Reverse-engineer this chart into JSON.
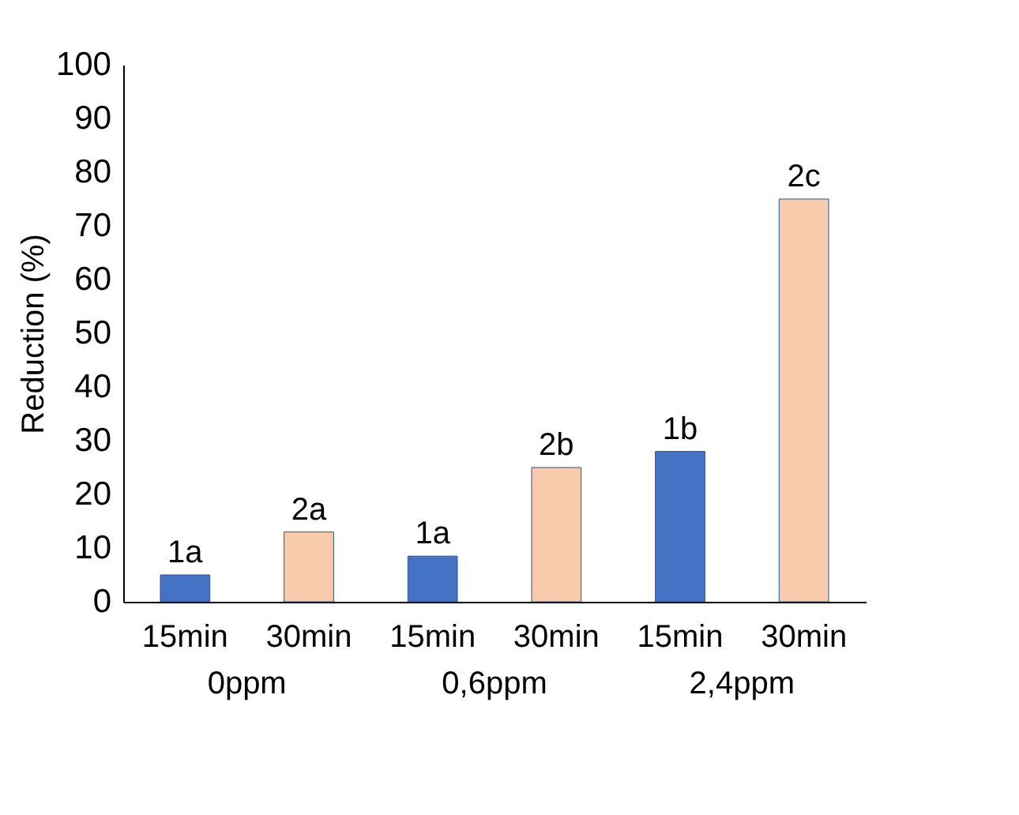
{
  "chart_data": {
    "type": "bar",
    "ylabel": "Reduction (%)",
    "categories": [
      "15min",
      "30min",
      "15min",
      "30min",
      "15min",
      "30min"
    ],
    "values": [
      5,
      13,
      8.5,
      25,
      28,
      75
    ],
    "colors": [
      "#4472c4",
      "#f8cbad",
      "#4472c4",
      "#f8cbad",
      "#4472c4",
      "#f8cbad"
    ],
    "annotations": [
      "0ppm",
      "0,6ppm",
      "2,4ppm",
      {
        "text": "1a",
        "y": 5
      },
      {
        "text": "2a",
        "y": 13
      },
      {
        "text": "1a",
        "y": 8.5
      },
      {
        "text": "2b",
        "y": 25
      },
      {
        "text": "1b",
        "y": 28
      },
      {
        "text": "2c",
        "y": 75
      }
    ],
    "ylim": [
      0,
      100
    ],
    "yticks": [
      0,
      10,
      20,
      30,
      40,
      50,
      60,
      70,
      80,
      90,
      100
    ]
  }
}
